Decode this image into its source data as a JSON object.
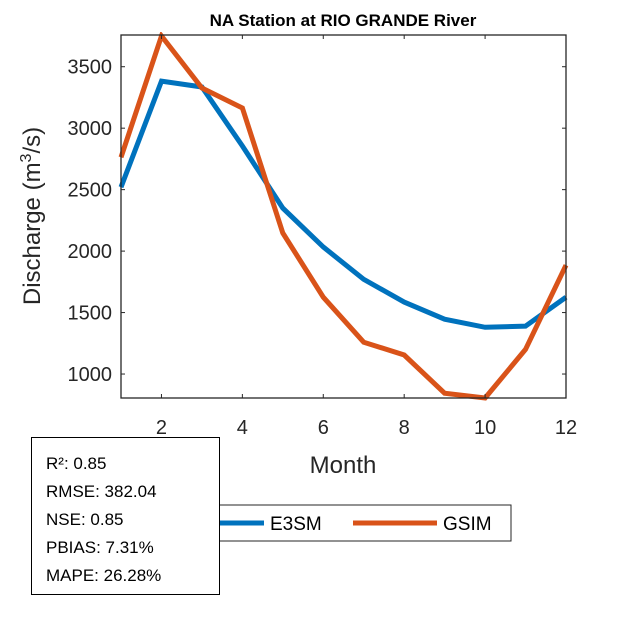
{
  "chart_data": {
    "type": "line",
    "title": "NA  Station at  RIO GRANDE  River",
    "xlabel": "Month",
    "ylabel": "Discharge (m³/s)",
    "ylabel_parts": {
      "before": "Discharge (m",
      "superscript": "3",
      "after": "/s)"
    },
    "x": [
      1,
      2,
      3,
      4,
      5,
      6,
      7,
      8,
      9,
      10,
      11,
      12
    ],
    "xlim": [
      1,
      12
    ],
    "ylim": [
      805,
      3758
    ],
    "xticks": [
      2,
      4,
      6,
      8,
      10,
      12
    ],
    "xtick_labels": [
      "2",
      "4",
      "6",
      "8",
      "10",
      "12"
    ],
    "yticks": [
      1000,
      1500,
      2000,
      2500,
      3000,
      3500
    ],
    "ytick_labels": [
      "1000",
      "1500",
      "2000",
      "2500",
      "3000",
      "3500"
    ],
    "grid": false,
    "legend_position": "bottom-outside",
    "series": [
      {
        "name": "E3SM",
        "color": "#0072BD",
        "values": [
          2520,
          3383,
          3335,
          2855,
          2350,
          2033,
          1771,
          1585,
          1446,
          1380,
          1390,
          1625
        ]
      },
      {
        "name": "GSIM",
        "color": "#D95319",
        "values": [
          2763,
          3750,
          3327,
          3164,
          2147,
          1625,
          1259,
          1155,
          844,
          805,
          1200,
          1885
        ]
      }
    ]
  },
  "stats": {
    "lines": [
      "R²: 0.85",
      "RMSE: 382.04",
      "NSE: 0.85",
      "PBIAS: 7.31%",
      "MAPE: 26.28%"
    ]
  }
}
